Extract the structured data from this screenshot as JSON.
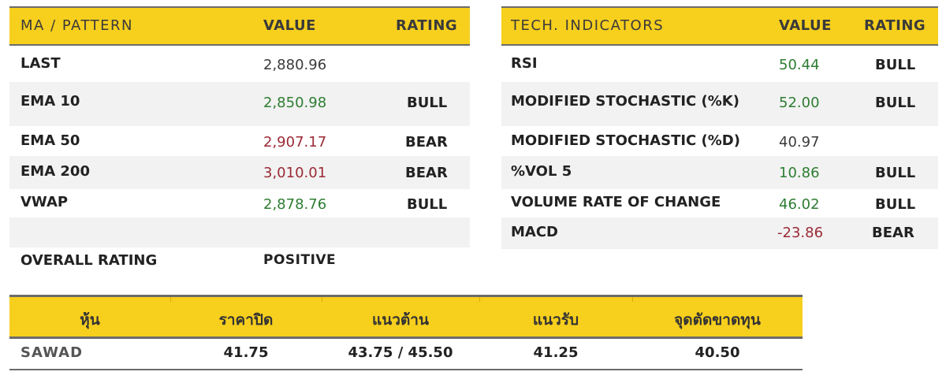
{
  "ma_table": {
    "headers": {
      "name": "MA / PATTERN",
      "value": "VALUE",
      "rating": "RATING"
    },
    "rows": [
      {
        "name": "LAST",
        "value": "2,880.96",
        "value_tone": "neutral",
        "rating": ""
      },
      {
        "name": "EMA 10",
        "value": "2,850.98",
        "value_tone": "green",
        "rating": "BULL"
      },
      {
        "name": "EMA 50",
        "value": "2,907.17",
        "value_tone": "red",
        "rating": "BEAR"
      },
      {
        "name": "EMA 200",
        "value": "3,010.01",
        "value_tone": "red",
        "rating": "BEAR"
      },
      {
        "name": "VWAP",
        "value": "2,878.76",
        "value_tone": "green",
        "rating": "BULL"
      },
      {
        "name": "",
        "value": "",
        "value_tone": "neutral",
        "rating": ""
      },
      {
        "name": "OVERALL RATING",
        "value": "POSITIVE",
        "value_tone": "bold",
        "rating": ""
      }
    ]
  },
  "tech_table": {
    "headers": {
      "name": "TECH. INDICATORS",
      "value": "VALUE",
      "rating": "RATING"
    },
    "rows": [
      {
        "name": "RSI",
        "value": "50.44",
        "value_tone": "green",
        "rating": "BULL"
      },
      {
        "name": "MODIFIED STOCHASTIC (%K)",
        "value": "52.00",
        "value_tone": "green",
        "rating": "BULL"
      },
      {
        "name": "MODIFIED STOCHASTIC (%D)",
        "value": "40.97",
        "value_tone": "neutral",
        "rating": ""
      },
      {
        "name": "%VOL 5",
        "value": "10.86",
        "value_tone": "green",
        "rating": "BULL"
      },
      {
        "name": "VOLUME RATE OF CHANGE",
        "value": "46.02",
        "value_tone": "green",
        "rating": "BULL"
      },
      {
        "name": "MACD",
        "value": "-23.86",
        "value_tone": "red",
        "rating": "BEAR"
      }
    ]
  },
  "stock_table": {
    "headers": [
      "หุ้น",
      "ราคาปิด",
      "แนวต้าน",
      "แนวรับ",
      "จุดตัดขาดทุน"
    ],
    "row": {
      "ticker": "SAWAD",
      "close": "41.75",
      "resistance": "43.75 / 45.50",
      "support": "41.25",
      "stop_loss": "40.50"
    }
  },
  "colors": {
    "header_yellow": "#f7cf1d",
    "green": "#2e7d32",
    "red": "#9b2a35",
    "row_shade": "#f2f2f2"
  }
}
